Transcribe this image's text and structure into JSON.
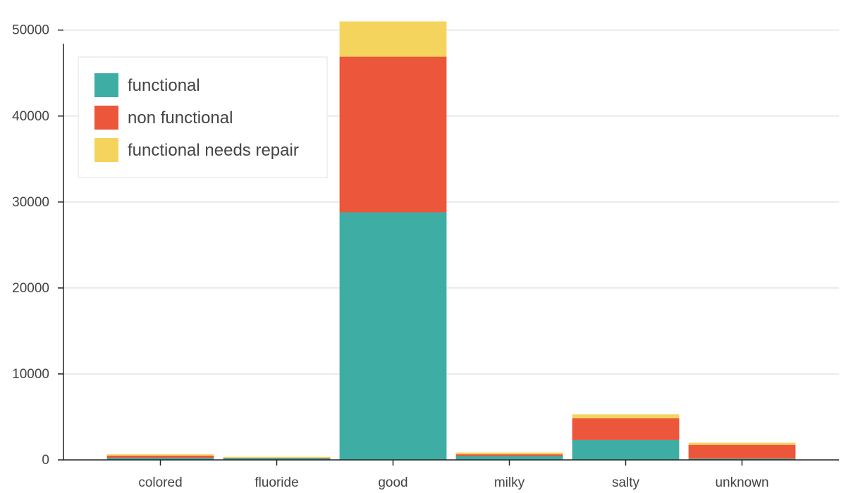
{
  "chart_data": {
    "type": "bar",
    "stacked": true,
    "categories": [
      "colored",
      "fluoride",
      "good",
      "milky",
      "salty",
      "unknown"
    ],
    "series": [
      {
        "name": "functional",
        "color": "#3eaea5",
        "values": [
          250,
          200,
          28800,
          450,
          2300,
          150
        ]
      },
      {
        "name": "non functional",
        "color": "#ec563b",
        "values": [
          250,
          50,
          18100,
          200,
          2550,
          1600
        ]
      },
      {
        "name": "functional needs repair",
        "color": "#f5d45e",
        "values": [
          150,
          100,
          4100,
          200,
          450,
          250
        ]
      }
    ],
    "yticks": [
      0,
      10000,
      20000,
      30000,
      40000,
      50000
    ],
    "ylim": [
      0,
      53500
    ],
    "grid": true,
    "legend_position": "top-left"
  }
}
